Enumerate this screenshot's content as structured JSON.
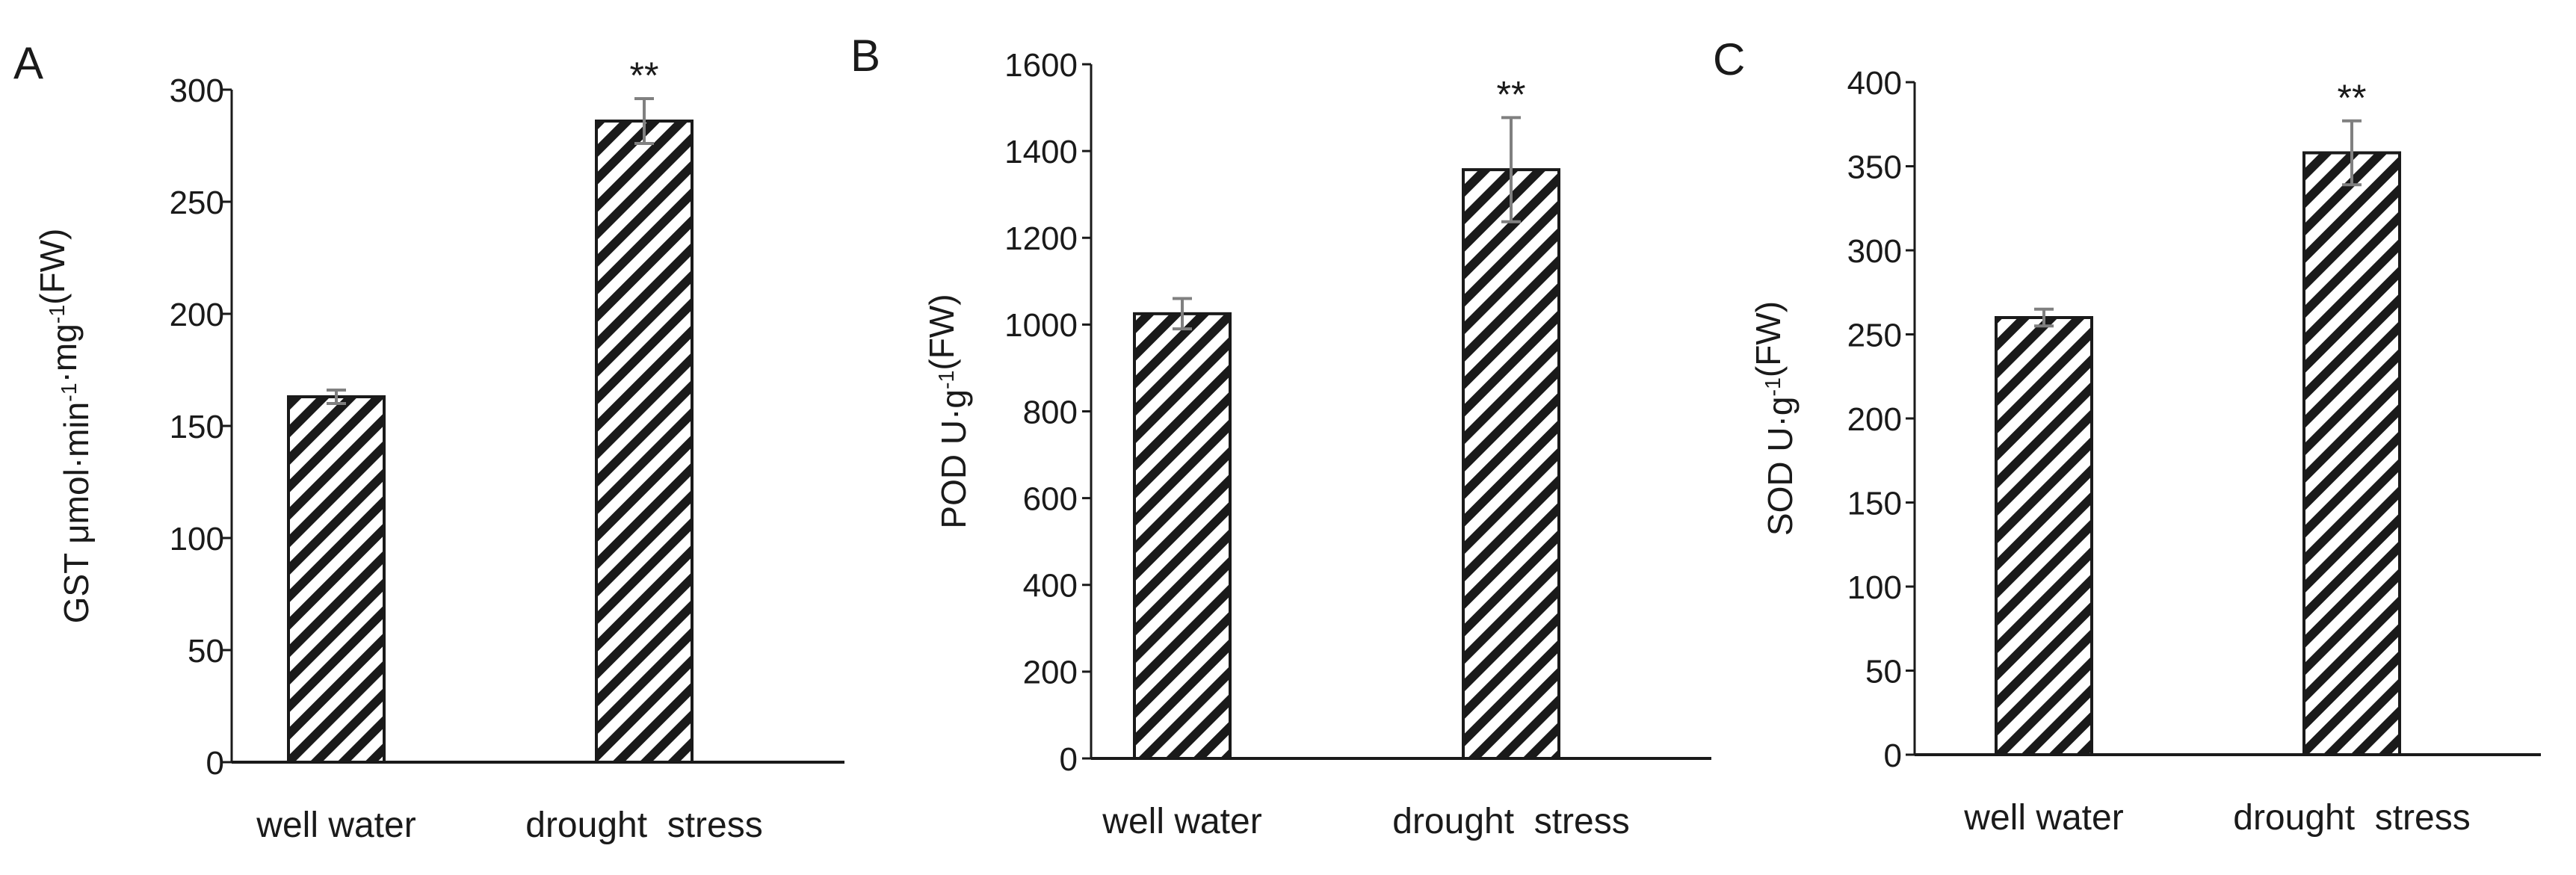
{
  "colors": {
    "axis": "#1a1a1a",
    "bar_fill": "#ffffff",
    "hatch": "#1a1a1a",
    "error_bar": "#808080"
  },
  "chart_data": [
    {
      "panel": "A",
      "type": "bar",
      "categories": [
        "well water",
        "drought  stress"
      ],
      "values": [
        163,
        286
      ],
      "errors": [
        3,
        10
      ],
      "annotations": [
        "",
        "**"
      ],
      "ylabel": "GST μmol·min-1·mg-1(FW)",
      "ylabel_parts": [
        "GST μmol·min",
        "-1",
        "·mg",
        "-1",
        "(FW)"
      ],
      "ylim": [
        0,
        300
      ],
      "yticks": [
        "0",
        "50",
        "100",
        "150",
        "200",
        "250",
        "300"
      ]
    },
    {
      "panel": "B",
      "type": "bar",
      "categories": [
        "well water",
        "drought  stress"
      ],
      "values": [
        1025,
        1357
      ],
      "errors": [
        35,
        120
      ],
      "annotations": [
        "",
        "**"
      ],
      "ylabel": "POD U·g-1(FW)",
      "ylabel_parts": [
        "POD U·g",
        "-1",
        "(FW)"
      ],
      "ylim": [
        0,
        1600
      ],
      "yticks": [
        "0",
        "200",
        "400",
        "600",
        "800",
        "1000",
        "1200",
        "1400",
        "1600"
      ]
    },
    {
      "panel": "C",
      "type": "bar",
      "categories": [
        "well water",
        "drought  stress"
      ],
      "values": [
        260,
        358
      ],
      "errors": [
        5,
        19
      ],
      "annotations": [
        "",
        "**"
      ],
      "ylabel": "SOD U·g-1(FW)",
      "ylabel_parts": [
        "SOD U·g",
        "-1",
        "(FW)"
      ],
      "ylim": [
        0,
        400
      ],
      "yticks": [
        "0",
        "50",
        "100",
        "150",
        "200",
        "250",
        "300",
        "350",
        "400"
      ]
    }
  ]
}
